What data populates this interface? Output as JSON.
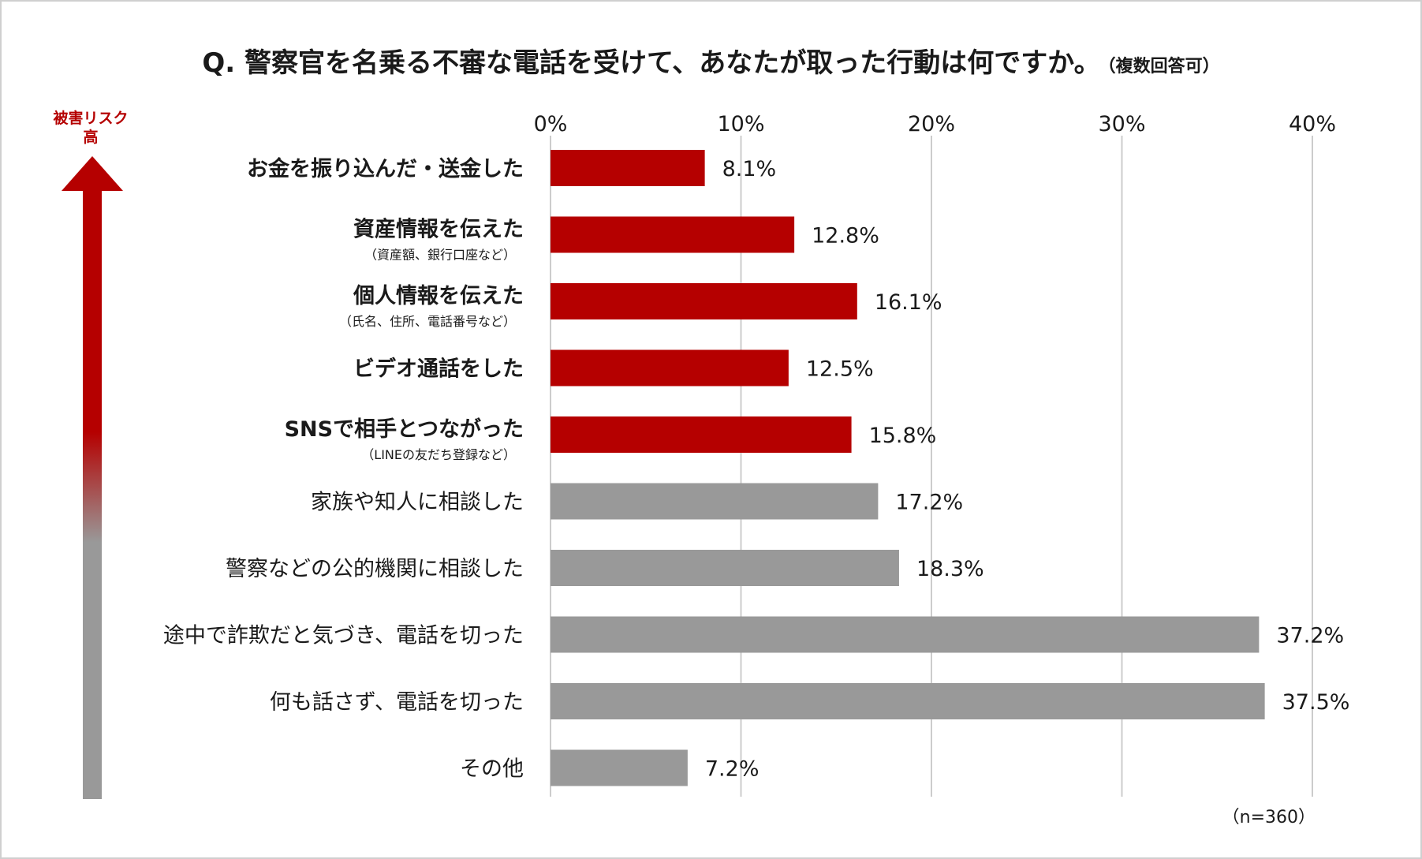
{
  "title": "Q. 警察官を名乗る不審な電話を受けて、あなたが取った行動は何ですか。",
  "title_note": "（複数回答可）",
  "risk_label_line1": "被害リスク",
  "risk_label_line2": "高",
  "sample_note": "（n=360）",
  "colors": {
    "risk": "#b50000",
    "other": "#999999",
    "grid": "#cccccc",
    "text": "#1a1a1a"
  },
  "chart_data": {
    "type": "bar",
    "orientation": "horizontal",
    "x_ticks": [
      "0%",
      "10%",
      "20%",
      "30%",
      "40%"
    ],
    "xlim": [
      0,
      40
    ],
    "categories": [
      {
        "label": "お金を振り込んだ・送金した",
        "sub": "",
        "value": 8.1,
        "value_label": "8.1%",
        "group": "risk"
      },
      {
        "label": "資産情報を伝えた",
        "sub": "（資産額、銀行口座など）",
        "value": 12.8,
        "value_label": "12.8%",
        "group": "risk"
      },
      {
        "label": "個人情報を伝えた",
        "sub": "（氏名、住所、電話番号など）",
        "value": 16.1,
        "value_label": "16.1%",
        "group": "risk"
      },
      {
        "label": "ビデオ通話をした",
        "sub": "",
        "value": 12.5,
        "value_label": "12.5%",
        "group": "risk"
      },
      {
        "label": "SNSで相手とつながった",
        "sub": "（LINEの友だち登録など）",
        "value": 15.8,
        "value_label": "15.8%",
        "group": "risk"
      },
      {
        "label": "家族や知人に相談した",
        "sub": "",
        "value": 17.2,
        "value_label": "17.2%",
        "group": "other"
      },
      {
        "label": "警察などの公的機関に相談した",
        "sub": "",
        "value": 18.3,
        "value_label": "18.3%",
        "group": "other"
      },
      {
        "label": "途中で詐欺だと気づき、電話を切った",
        "sub": "",
        "value": 37.2,
        "value_label": "37.2%",
        "group": "other"
      },
      {
        "label": "何も話さず、電話を切った",
        "sub": "",
        "value": 37.5,
        "value_label": "37.5%",
        "group": "other"
      },
      {
        "label": "その他",
        "sub": "",
        "value": 7.2,
        "value_label": "7.2%",
        "group": "other"
      }
    ]
  }
}
